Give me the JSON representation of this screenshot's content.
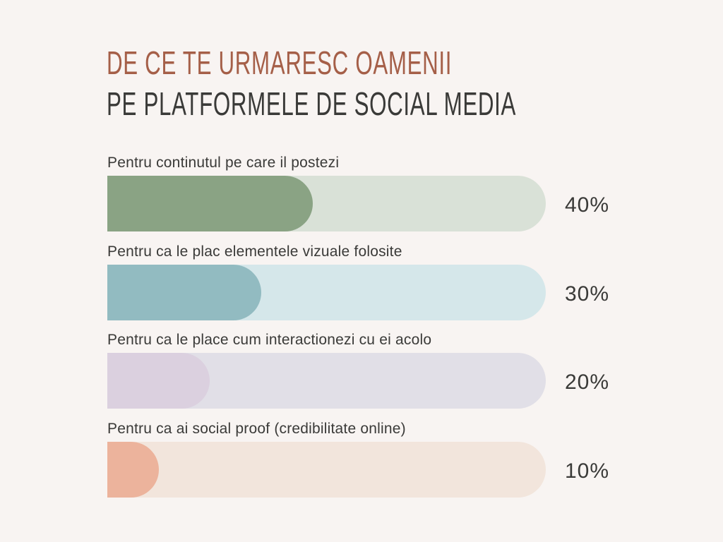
{
  "title": {
    "line1": "DE CE TE URMARESC OAMENII",
    "line2": "PE PLATFORMELE DE SOCIAL MEDIA"
  },
  "colors": {
    "background": "#f8f4f2",
    "title_accent": "#a55f48",
    "text": "#3a3a38"
  },
  "chart_data": {
    "type": "bar",
    "orientation": "horizontal",
    "categories": [
      "Pentru continutul pe care il postezi",
      "Pentru ca le plac elementele vizuale folosite",
      "Pentru ca le place cum interactionezi cu ei acolo",
      "Pentru ca ai social proof (credibilitate online)"
    ],
    "values": [
      40,
      30,
      20,
      10
    ],
    "value_labels": [
      "40%",
      "30%",
      "20%",
      "10%"
    ],
    "xlim": [
      0,
      100
    ],
    "unit": "%",
    "bar_colors": [
      "#8aa384",
      "#92bbc1",
      "#dbd0df",
      "#ecb39c"
    ],
    "track_colors": [
      "#d9e1d7",
      "#d5e7ea",
      "#e1dfe7",
      "#f2e5dc"
    ],
    "title": "DE CE TE URMARESC OAMENII PE PLATFORMELE DE SOCIAL MEDIA",
    "xlabel": "",
    "ylabel": "",
    "grid": false,
    "legend": "none"
  }
}
